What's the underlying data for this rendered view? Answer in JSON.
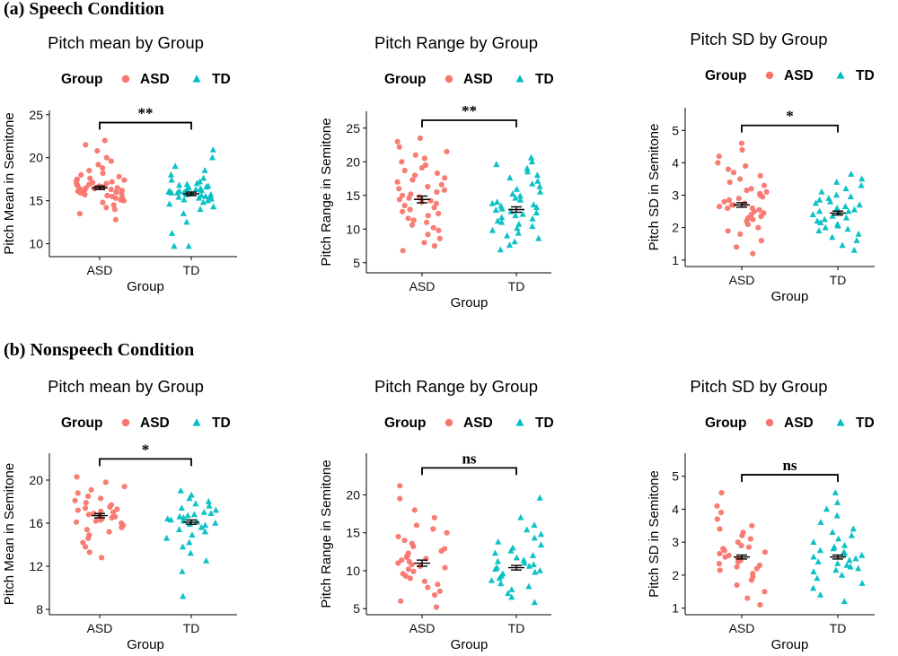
{
  "sections": [
    {
      "title": "(a) Speech Condition"
    },
    {
      "title": "(b) Nonspeech Condition"
    }
  ],
  "colors": {
    "ASD": "#F8766D",
    "TD": "#00BFC4"
  },
  "legend": {
    "title": "Group",
    "items": [
      {
        "label": "ASD",
        "shape": "circle"
      },
      {
        "label": "TD",
        "shape": "triangle"
      }
    ]
  },
  "chart_data": [
    {
      "type": "scatter",
      "section": "(a) Speech Condition",
      "title": "Pitch mean by Group",
      "xlabel": "Group",
      "ylabel": "Pitch Mean in Semitone",
      "categories": [
        "ASD",
        "TD"
      ],
      "ylim": [
        8.5,
        25.5
      ],
      "yticks": [
        10,
        15,
        20,
        25
      ],
      "series": [
        {
          "name": "ASD",
          "mean": 16.5,
          "se": 0.2,
          "min": 12.8,
          "max": 22.0,
          "points": [
            12.8,
            13.5,
            14.0,
            14.2,
            14.5,
            14.8,
            15.0,
            15.1,
            15.3,
            15.4,
            15.5,
            15.6,
            15.7,
            15.8,
            15.9,
            16.0,
            16.0,
            16.1,
            16.2,
            16.2,
            16.3,
            16.4,
            16.4,
            16.5,
            16.5,
            16.6,
            16.6,
            16.7,
            16.8,
            16.8,
            16.9,
            17.0,
            17.0,
            17.1,
            17.2,
            17.3,
            17.4,
            17.5,
            17.6,
            17.8,
            18.0,
            18.2,
            18.5,
            18.8,
            19.2,
            19.6,
            20.0,
            20.8,
            21.5,
            22.0
          ]
        },
        {
          "name": "TD",
          "mean": 15.8,
          "se": 0.2,
          "min": 9.7,
          "max": 20.9,
          "points": [
            9.7,
            9.7,
            11.2,
            12.5,
            13.5,
            14.0,
            14.3,
            14.6,
            14.8,
            15.0,
            15.1,
            15.2,
            15.3,
            15.4,
            15.5,
            15.5,
            15.6,
            15.7,
            15.7,
            15.8,
            15.8,
            15.9,
            15.9,
            16.0,
            16.0,
            16.1,
            16.1,
            16.2,
            16.3,
            16.3,
            16.4,
            16.5,
            16.6,
            16.7,
            16.8,
            16.9,
            17.0,
            17.2,
            17.4,
            17.6,
            18.0,
            18.5,
            19.0,
            20.0,
            20.9
          ]
        }
      ],
      "significance": "**"
    },
    {
      "type": "scatter",
      "section": "(a) Speech Condition",
      "title": "Pitch Range by Group",
      "xlabel": "Group",
      "ylabel": "Pitch Range in Semitone",
      "categories": [
        "ASD",
        "TD"
      ],
      "ylim": [
        3.5,
        27.5
      ],
      "yticks": [
        5,
        10,
        15,
        20,
        25
      ],
      "series": [
        {
          "name": "ASD",
          "mean": 14.4,
          "se": 0.5,
          "min": 6.8,
          "max": 23.5,
          "points": [
            6.8,
            7.5,
            8.0,
            8.6,
            9.2,
            9.8,
            10.2,
            10.6,
            11.0,
            11.3,
            11.6,
            12.0,
            12.3,
            12.6,
            12.9,
            13.2,
            13.5,
            13.8,
            14.0,
            14.2,
            14.4,
            14.6,
            14.8,
            15.0,
            15.2,
            15.5,
            15.8,
            16.0,
            16.3,
            16.6,
            17.0,
            17.3,
            17.6,
            18.0,
            18.3,
            18.7,
            19.1,
            19.5,
            20.0,
            20.5,
            21.0,
            21.5,
            22.2,
            23.0,
            23.5
          ]
        },
        {
          "name": "TD",
          "mean": 12.9,
          "se": 0.4,
          "min": 6.9,
          "max": 20.6,
          "points": [
            6.9,
            7.6,
            8.1,
            8.6,
            9.0,
            9.4,
            9.8,
            10.1,
            10.4,
            10.7,
            11.0,
            11.2,
            11.5,
            11.7,
            12.0,
            12.2,
            12.4,
            12.6,
            12.8,
            13.0,
            13.2,
            13.4,
            13.6,
            13.8,
            14.0,
            14.3,
            14.6,
            14.9,
            15.2,
            15.5,
            15.9,
            16.3,
            16.7,
            17.1,
            17.6,
            18.0,
            18.5,
            19.0,
            19.6,
            20.0,
            20.6
          ]
        }
      ],
      "significance": "**"
    },
    {
      "type": "scatter",
      "section": "(a) Speech Condition",
      "title": "Pitch SD by Group",
      "xlabel": "Group",
      "ylabel": "Pitch SD in Semitone",
      "categories": [
        "ASD",
        "TD"
      ],
      "ylim": [
        0.8,
        5.7
      ],
      "yticks": [
        1,
        2,
        3,
        4,
        5
      ],
      "series": [
        {
          "name": "ASD",
          "mean": 2.7,
          "se": 0.07,
          "min": 1.2,
          "max": 4.6,
          "points": [
            1.2,
            1.4,
            1.6,
            1.8,
            1.9,
            2.0,
            2.1,
            2.2,
            2.25,
            2.3,
            2.35,
            2.4,
            2.45,
            2.5,
            2.55,
            2.6,
            2.6,
            2.65,
            2.7,
            2.7,
            2.75,
            2.8,
            2.85,
            2.9,
            2.95,
            3.0,
            3.05,
            3.1,
            3.15,
            3.2,
            3.3,
            3.4,
            3.5,
            3.6,
            3.7,
            3.8,
            3.9,
            4.0,
            4.2,
            4.4,
            4.6
          ]
        },
        {
          "name": "TD",
          "mean": 2.45,
          "se": 0.06,
          "min": 1.3,
          "max": 3.65,
          "points": [
            1.3,
            1.45,
            1.6,
            1.7,
            1.8,
            1.9,
            1.95,
            2.0,
            2.05,
            2.1,
            2.15,
            2.2,
            2.25,
            2.3,
            2.35,
            2.4,
            2.45,
            2.5,
            2.5,
            2.55,
            2.6,
            2.65,
            2.7,
            2.75,
            2.8,
            2.85,
            2.9,
            2.95,
            3.0,
            3.1,
            3.2,
            3.3,
            3.4,
            3.5,
            3.65
          ]
        }
      ],
      "significance": "*"
    },
    {
      "type": "scatter",
      "section": "(b) Nonspeech Condition",
      "title": "Pitch mean by Group",
      "xlabel": "Group",
      "ylabel": "Pitch Mean in Semitone",
      "categories": [
        "ASD",
        "TD"
      ],
      "ylim": [
        7.5,
        22.5
      ],
      "yticks": [
        8,
        12,
        16,
        20
      ],
      "series": [
        {
          "name": "ASD",
          "mean": 16.7,
          "se": 0.2,
          "min": 12.8,
          "max": 20.3,
          "points": [
            12.8,
            13.3,
            13.8,
            14.2,
            14.6,
            14.9,
            15.2,
            15.4,
            15.6,
            15.8,
            16.0,
            16.1,
            16.2,
            16.3,
            16.4,
            16.5,
            16.6,
            16.7,
            16.8,
            16.9,
            17.0,
            17.1,
            17.2,
            17.3,
            17.4,
            17.5,
            17.7,
            17.9,
            18.1,
            18.3,
            18.5,
            18.8,
            19.1,
            19.4,
            19.8,
            20.3
          ]
        },
        {
          "name": "TD",
          "mean": 16.1,
          "se": 0.2,
          "min": 9.2,
          "max": 19.0,
          "points": [
            9.2,
            11.5,
            12.5,
            13.2,
            13.8,
            14.2,
            14.6,
            14.9,
            15.2,
            15.4,
            15.6,
            15.8,
            15.9,
            16.0,
            16.1,
            16.2,
            16.3,
            16.4,
            16.5,
            16.6,
            16.7,
            16.8,
            16.9,
            17.0,
            17.2,
            17.4,
            17.6,
            17.8,
            18.0,
            18.3,
            18.6,
            19.0
          ]
        }
      ],
      "significance": "*"
    },
    {
      "type": "scatter",
      "section": "(b) Nonspeech Condition",
      "title": "Pitch Range by Group",
      "xlabel": "Group",
      "ylabel": "Pitch Range in Semitone",
      "categories": [
        "ASD",
        "TD"
      ],
      "ylim": [
        4.2,
        25.5
      ],
      "yticks": [
        5,
        10,
        15,
        20
      ],
      "series": [
        {
          "name": "ASD",
          "mean": 11.0,
          "se": 0.4,
          "min": 5.2,
          "max": 21.2,
          "points": [
            5.2,
            6.0,
            6.8,
            7.3,
            7.8,
            8.2,
            8.6,
            9.0,
            9.3,
            9.6,
            9.9,
            10.2,
            10.4,
            10.6,
            10.8,
            11.0,
            11.2,
            11.4,
            11.6,
            11.8,
            12.0,
            12.3,
            12.6,
            12.9,
            13.2,
            13.6,
            14.0,
            14.5,
            15.0,
            15.5,
            16.0,
            17.0,
            18.0,
            19.5,
            21.2
          ]
        },
        {
          "name": "TD",
          "mean": 10.4,
          "se": 0.3,
          "min": 5.8,
          "max": 19.6,
          "points": [
            5.8,
            6.5,
            7.0,
            7.5,
            7.9,
            8.3,
            8.7,
            9.0,
            9.3,
            9.6,
            9.8,
            10.0,
            10.2,
            10.4,
            10.6,
            10.8,
            11.0,
            11.2,
            11.4,
            11.7,
            12.0,
            12.3,
            12.6,
            13.0,
            13.4,
            13.8,
            14.3,
            14.8,
            15.4,
            16.0,
            17.0,
            19.6
          ]
        }
      ],
      "significance": "ns"
    },
    {
      "type": "scatter",
      "section": "(b) Nonspeech Condition",
      "title": "Pitch SD by Group",
      "xlabel": "Group",
      "ylabel": "Pitch SD in Semitone",
      "categories": [
        "ASD",
        "TD"
      ],
      "ylim": [
        0.8,
        5.7
      ],
      "yticks": [
        1,
        2,
        3,
        4,
        5
      ],
      "series": [
        {
          "name": "ASD",
          "mean": 2.55,
          "se": 0.06,
          "min": 1.1,
          "max": 4.5,
          "points": [
            1.1,
            1.3,
            1.5,
            1.7,
            1.85,
            1.95,
            2.05,
            2.15,
            2.2,
            2.25,
            2.3,
            2.35,
            2.4,
            2.45,
            2.5,
            2.55,
            2.6,
            2.65,
            2.7,
            2.75,
            2.8,
            2.85,
            2.9,
            3.0,
            3.1,
            3.2,
            3.3,
            3.4,
            3.5,
            3.7,
            3.9,
            4.1,
            4.5
          ]
        },
        {
          "name": "TD",
          "mean": 2.55,
          "se": 0.06,
          "min": 1.2,
          "max": 4.5,
          "points": [
            1.2,
            1.4,
            1.6,
            1.75,
            1.9,
            2.0,
            2.1,
            2.15,
            2.2,
            2.25,
            2.3,
            2.35,
            2.4,
            2.45,
            2.5,
            2.55,
            2.6,
            2.65,
            2.7,
            2.75,
            2.8,
            2.85,
            2.9,
            3.0,
            3.1,
            3.2,
            3.3,
            3.4,
            3.6,
            3.8,
            4.0,
            4.2,
            4.5
          ]
        }
      ],
      "significance": "ns"
    }
  ]
}
